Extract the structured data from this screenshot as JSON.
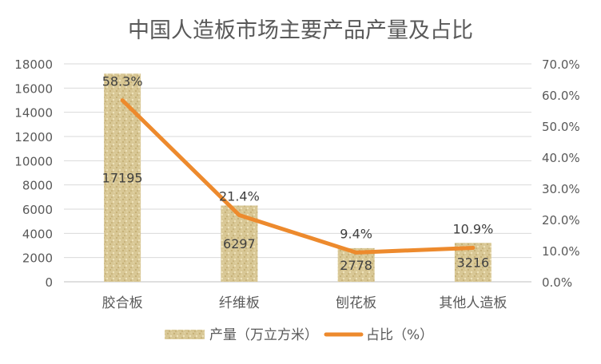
{
  "chart_data": {
    "type": "bar+line",
    "title": "中国人造板市场主要产品产量及占比",
    "categories": [
      "胶合板",
      "纤维板",
      "刨花板",
      "其他人造板"
    ],
    "series": [
      {
        "name": "产量（万立方米）",
        "type": "bar",
        "axis": "left",
        "values": [
          17195,
          6297,
          2778,
          3216
        ],
        "labels": [
          "17195",
          "6297",
          "2778",
          "3216"
        ]
      },
      {
        "name": "占比（%）",
        "type": "line",
        "axis": "right",
        "values": [
          58.3,
          21.4,
          9.4,
          10.9
        ],
        "labels": [
          "58.3%",
          "21.4%",
          "9.4%",
          "10.9%"
        ]
      }
    ],
    "left_axis": {
      "ylim": [
        0,
        18000
      ],
      "ticks": [
        "0",
        "2000",
        "4000",
        "6000",
        "8000",
        "10000",
        "12000",
        "14000",
        "16000",
        "18000"
      ]
    },
    "right_axis": {
      "ylim": [
        0,
        70
      ],
      "ticks": [
        "0.0%",
        "10.0%",
        "20.0%",
        "30.0%",
        "40.0%",
        "50.0%",
        "60.0%",
        "70.0%"
      ]
    },
    "grid": true,
    "legend_position": "bottom",
    "colors": {
      "bar": "#d4c08e",
      "line": "#ed8a2d",
      "text": "#595959",
      "grid": "#d9d9d9"
    }
  }
}
